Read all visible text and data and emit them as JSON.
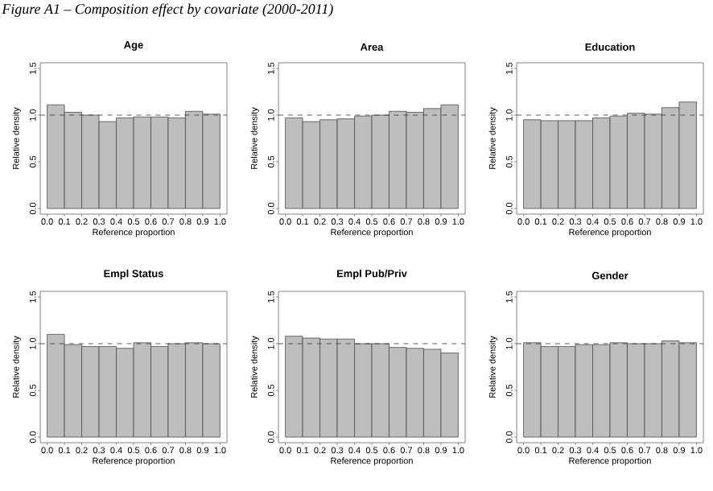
{
  "chart_data": [
    {
      "type": "histogram",
      "title": "Age",
      "xlabel": "Reference proportion",
      "ylabel": "Relative density",
      "annotations": [
        "Figure A1 – Composition effect by covariate (2000-2011)"
      ],
      "bins": [
        0,
        0.1,
        0.2,
        0.3,
        0.4,
        0.5,
        0.6,
        0.7,
        0.8,
        0.9,
        1.0
      ],
      "values": [
        1.11,
        1.03,
        1.0,
        0.93,
        0.97,
        0.98,
        0.98,
        0.97,
        1.04,
        1.01
      ],
      "color": "#bebebe",
      "xlim": [
        -0.04,
        1.04
      ],
      "ylim": [
        -0.06,
        1.56
      ],
      "xticks": [
        {
          "value": 0,
          "label": "0.0"
        },
        {
          "value": 0.1,
          "label": "0.1"
        },
        {
          "value": 0.2,
          "label": "0.2"
        },
        {
          "value": 0.3,
          "label": "0.3"
        },
        {
          "value": 0.4,
          "label": "0.4"
        },
        {
          "value": 0.5,
          "label": "0.5"
        },
        {
          "value": 0.6,
          "label": "0.6"
        },
        {
          "value": 0.7,
          "label": "0.7"
        },
        {
          "value": 0.8,
          "label": "0.8"
        },
        {
          "value": 0.9,
          "label": "0.9"
        },
        {
          "value": 1,
          "label": "1.0"
        }
      ],
      "yticks": [
        {
          "value": 0,
          "label": "0.0"
        },
        {
          "value": 0.5,
          "label": "0.5"
        },
        {
          "value": 1,
          "label": "1.0"
        },
        {
          "value": 1.5,
          "label": "1.5"
        }
      ],
      "ref_lines": [
        {
          "axis": "y",
          "value": 1,
          "line_style": "dashed"
        }
      ]
    },
    {
      "type": "histogram",
      "title": "Area",
      "xlabel": "Reference proportion",
      "ylabel": "Relative density",
      "bins": [
        0,
        0.1,
        0.2,
        0.3,
        0.4,
        0.5,
        0.6,
        0.7,
        0.8,
        0.9,
        1.0
      ],
      "values": [
        0.97,
        0.93,
        0.95,
        0.96,
        0.99,
        1.0,
        1.04,
        1.03,
        1.07,
        1.11
      ],
      "color": "#bebebe",
      "xlim": [
        -0.04,
        1.04
      ],
      "ylim": [
        -0.06,
        1.56
      ],
      "xticks": [
        {
          "value": 0,
          "label": "0.0"
        },
        {
          "value": 0.1,
          "label": "0.1"
        },
        {
          "value": 0.2,
          "label": "0.2"
        },
        {
          "value": 0.3,
          "label": "0.3"
        },
        {
          "value": 0.4,
          "label": "0.4"
        },
        {
          "value": 0.5,
          "label": "0.5"
        },
        {
          "value": 0.6,
          "label": "0.6"
        },
        {
          "value": 0.7,
          "label": "0.7"
        },
        {
          "value": 0.8,
          "label": "0.8"
        },
        {
          "value": 0.9,
          "label": "0.9"
        },
        {
          "value": 1,
          "label": "1.0"
        }
      ],
      "yticks": [
        {
          "value": 0,
          "label": "0.0"
        },
        {
          "value": 0.5,
          "label": "0.5"
        },
        {
          "value": 1,
          "label": "1.0"
        },
        {
          "value": 1.5,
          "label": "1.5"
        }
      ],
      "ref_lines": [
        {
          "axis": "y",
          "value": 1,
          "line_style": "dashed"
        }
      ]
    },
    {
      "type": "histogram",
      "title": "Education",
      "xlabel": "Reference proportion",
      "ylabel": "Relative density",
      "bins": [
        0,
        0.1,
        0.2,
        0.3,
        0.4,
        0.5,
        0.6,
        0.7,
        0.8,
        0.9,
        1.0
      ],
      "values": [
        0.95,
        0.94,
        0.94,
        0.94,
        0.97,
        0.99,
        1.02,
        1.01,
        1.08,
        1.14
      ],
      "color": "#bebebe",
      "xlim": [
        -0.04,
        1.04
      ],
      "ylim": [
        -0.06,
        1.56
      ],
      "xticks": [
        {
          "value": 0,
          "label": "0.0"
        },
        {
          "value": 0.1,
          "label": "0.1"
        },
        {
          "value": 0.2,
          "label": "0.2"
        },
        {
          "value": 0.3,
          "label": "0.3"
        },
        {
          "value": 0.4,
          "label": "0.4"
        },
        {
          "value": 0.5,
          "label": "0.5"
        },
        {
          "value": 0.6,
          "label": "0.6"
        },
        {
          "value": 0.7,
          "label": "0.7"
        },
        {
          "value": 0.8,
          "label": "0.8"
        },
        {
          "value": 0.9,
          "label": "0.9"
        },
        {
          "value": 1,
          "label": "1.0"
        }
      ],
      "yticks": [
        {
          "value": 0,
          "label": "0.0"
        },
        {
          "value": 0.5,
          "label": "0.5"
        },
        {
          "value": 1,
          "label": "1.0"
        },
        {
          "value": 1.5,
          "label": "1.5"
        }
      ],
      "ref_lines": [
        {
          "axis": "y",
          "value": 1,
          "line_style": "dashed"
        }
      ]
    },
    {
      "type": "histogram",
      "title": "Empl Status",
      "xlabel": "Reference proportion",
      "ylabel": "Relative density",
      "bins": [
        0,
        0.1,
        0.2,
        0.3,
        0.4,
        0.5,
        0.6,
        0.7,
        0.8,
        0.9,
        1.0
      ],
      "values": [
        1.1,
        0.99,
        0.97,
        0.97,
        0.95,
        1.01,
        0.97,
        1.0,
        1.01,
        1.0
      ],
      "color": "#bebebe",
      "xlim": [
        -0.04,
        1.04
      ],
      "ylim": [
        -0.06,
        1.56
      ],
      "xticks": [
        {
          "value": 0,
          "label": "0.0"
        },
        {
          "value": 0.1,
          "label": "0.1"
        },
        {
          "value": 0.2,
          "label": "0.2"
        },
        {
          "value": 0.3,
          "label": "0.3"
        },
        {
          "value": 0.4,
          "label": "0.4"
        },
        {
          "value": 0.5,
          "label": "0.5"
        },
        {
          "value": 0.6,
          "label": "0.6"
        },
        {
          "value": 0.7,
          "label": "0.7"
        },
        {
          "value": 0.8,
          "label": "0.8"
        },
        {
          "value": 0.9,
          "label": "0.9"
        },
        {
          "value": 1,
          "label": "1.0"
        }
      ],
      "yticks": [
        {
          "value": 0,
          "label": "0.0"
        },
        {
          "value": 0.5,
          "label": "0.5"
        },
        {
          "value": 1,
          "label": "1.0"
        },
        {
          "value": 1.5,
          "label": "1.5"
        }
      ],
      "ref_lines": [
        {
          "axis": "y",
          "value": 1,
          "line_style": "dashed"
        }
      ]
    },
    {
      "type": "histogram",
      "title": "Empl Pub/Priv",
      "xlabel": "Reference proportion",
      "ylabel": "Relative density",
      "bins": [
        0,
        0.1,
        0.2,
        0.3,
        0.4,
        0.5,
        0.6,
        0.7,
        0.8,
        0.9,
        1.0
      ],
      "values": [
        1.08,
        1.06,
        1.05,
        1.05,
        1.0,
        1.0,
        0.96,
        0.95,
        0.94,
        0.9
      ],
      "color": "#bebebe",
      "xlim": [
        -0.04,
        1.04
      ],
      "ylim": [
        -0.06,
        1.56
      ],
      "xticks": [
        {
          "value": 0,
          "label": "0.0"
        },
        {
          "value": 0.1,
          "label": "0.1"
        },
        {
          "value": 0.2,
          "label": "0.2"
        },
        {
          "value": 0.3,
          "label": "0.3"
        },
        {
          "value": 0.4,
          "label": "0.4"
        },
        {
          "value": 0.5,
          "label": "0.5"
        },
        {
          "value": 0.6,
          "label": "0.6"
        },
        {
          "value": 0.7,
          "label": "0.7"
        },
        {
          "value": 0.8,
          "label": "0.8"
        },
        {
          "value": 0.9,
          "label": "0.9"
        },
        {
          "value": 1,
          "label": "1.0"
        }
      ],
      "yticks": [
        {
          "value": 0,
          "label": "0.0"
        },
        {
          "value": 0.5,
          "label": "0.5"
        },
        {
          "value": 1,
          "label": "1.0"
        },
        {
          "value": 1.5,
          "label": "1.5"
        }
      ],
      "ref_lines": [
        {
          "axis": "y",
          "value": 1,
          "line_style": "dashed"
        }
      ]
    },
    {
      "type": "histogram",
      "title": "Gender",
      "xlabel": "Reference proportion",
      "ylabel": "Relative density",
      "bins": [
        0,
        0.1,
        0.2,
        0.3,
        0.4,
        0.5,
        0.6,
        0.7,
        0.8,
        0.9,
        1.0
      ],
      "values": [
        1.01,
        0.97,
        0.97,
        0.99,
        0.99,
        1.01,
        1.0,
        1.0,
        1.03,
        1.01
      ],
      "color": "#bebebe",
      "xlim": [
        -0.04,
        1.04
      ],
      "ylim": [
        -0.06,
        1.56
      ],
      "xticks": [
        {
          "value": 0,
          "label": "0.0"
        },
        {
          "value": 0.1,
          "label": "0.1"
        },
        {
          "value": 0.2,
          "label": "0.2"
        },
        {
          "value": 0.3,
          "label": "0.3"
        },
        {
          "value": 0.4,
          "label": "0.4"
        },
        {
          "value": 0.5,
          "label": "0.5"
        },
        {
          "value": 0.6,
          "label": "0.6"
        },
        {
          "value": 0.7,
          "label": "0.7"
        },
        {
          "value": 0.8,
          "label": "0.8"
        },
        {
          "value": 0.9,
          "label": "0.9"
        },
        {
          "value": 1,
          "label": "1.0"
        }
      ],
      "yticks": [
        {
          "value": 0,
          "label": "0.0"
        },
        {
          "value": 0.5,
          "label": "0.5"
        },
        {
          "value": 1,
          "label": "1.0"
        },
        {
          "value": 1.5,
          "label": "1.5"
        }
      ],
      "ref_lines": [
        {
          "axis": "y",
          "value": 1,
          "line_style": "dashed"
        }
      ]
    }
  ]
}
